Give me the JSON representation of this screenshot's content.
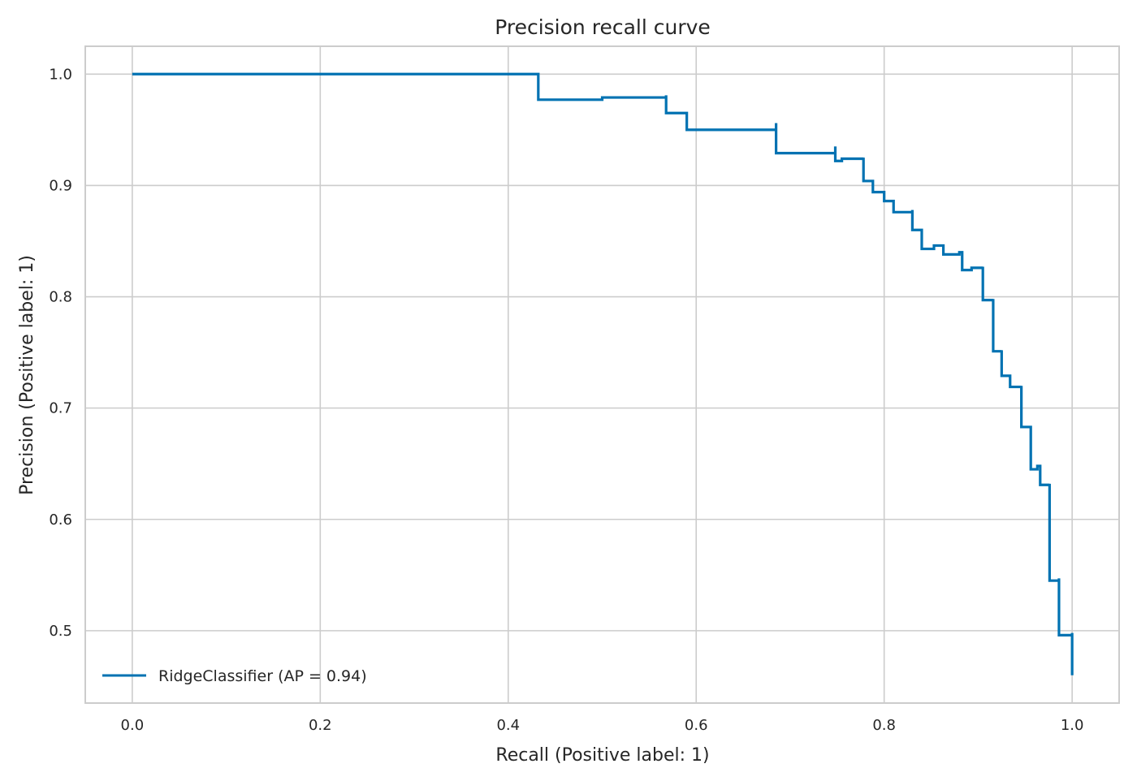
{
  "chart_data": {
    "type": "line",
    "title": "Precision recall curve",
    "xlabel": "Recall (Positive label: 1)",
    "ylabel": "Precision (Positive label: 1)",
    "xlim": [
      -0.05,
      1.05
    ],
    "ylim": [
      0.435,
      1.025
    ],
    "xticks": [
      0.0,
      0.2,
      0.4,
      0.6,
      0.8,
      1.0
    ],
    "xtick_labels": [
      "0.0",
      "0.2",
      "0.4",
      "0.6",
      "0.8",
      "1.0"
    ],
    "yticks": [
      0.5,
      0.6,
      0.7,
      0.8,
      0.9,
      1.0
    ],
    "ytick_labels": [
      "0.5",
      "0.6",
      "0.7",
      "0.8",
      "0.9",
      "1.0"
    ],
    "grid": true,
    "legend_position": "lower-left",
    "colors": {
      "series": "#0072b2",
      "grid": "#cccccc",
      "text": "#262626"
    },
    "series": [
      {
        "name": "RidgeClassifier (AP = 0.94)",
        "drawstyle": "steps-post",
        "points": [
          [
            0.0,
            1.0
          ],
          [
            0.432,
            1.0
          ],
          [
            0.432,
            0.977
          ],
          [
            0.5,
            0.979
          ],
          [
            0.568,
            0.981
          ],
          [
            0.568,
            0.965
          ],
          [
            0.59,
            0.965
          ],
          [
            0.59,
            0.95
          ],
          [
            0.685,
            0.956
          ],
          [
            0.685,
            0.929
          ],
          [
            0.748,
            0.935
          ],
          [
            0.748,
            0.922
          ],
          [
            0.755,
            0.924
          ],
          [
            0.778,
            0.925
          ],
          [
            0.778,
            0.904
          ],
          [
            0.788,
            0.904
          ],
          [
            0.788,
            0.894
          ],
          [
            0.8,
            0.894
          ],
          [
            0.8,
            0.886
          ],
          [
            0.81,
            0.886
          ],
          [
            0.81,
            0.876
          ],
          [
            0.83,
            0.878
          ],
          [
            0.83,
            0.86
          ],
          [
            0.84,
            0.86
          ],
          [
            0.84,
            0.843
          ],
          [
            0.853,
            0.846
          ],
          [
            0.863,
            0.846
          ],
          [
            0.863,
            0.838
          ],
          [
            0.88,
            0.84
          ],
          [
            0.883,
            0.84
          ],
          [
            0.883,
            0.824
          ],
          [
            0.893,
            0.826
          ],
          [
            0.905,
            0.827
          ],
          [
            0.905,
            0.797
          ],
          [
            0.916,
            0.798
          ],
          [
            0.916,
            0.751
          ],
          [
            0.925,
            0.752
          ],
          [
            0.925,
            0.729
          ],
          [
            0.934,
            0.729
          ],
          [
            0.934,
            0.719
          ],
          [
            0.946,
            0.72
          ],
          [
            0.946,
            0.683
          ],
          [
            0.956,
            0.683
          ],
          [
            0.956,
            0.645
          ],
          [
            0.963,
            0.648
          ],
          [
            0.966,
            0.648
          ],
          [
            0.966,
            0.631
          ],
          [
            0.976,
            0.632
          ],
          [
            0.976,
            0.545
          ],
          [
            0.986,
            0.547
          ],
          [
            0.986,
            0.496
          ],
          [
            1.0,
            0.498
          ],
          [
            1.0,
            0.46
          ]
        ]
      }
    ]
  }
}
